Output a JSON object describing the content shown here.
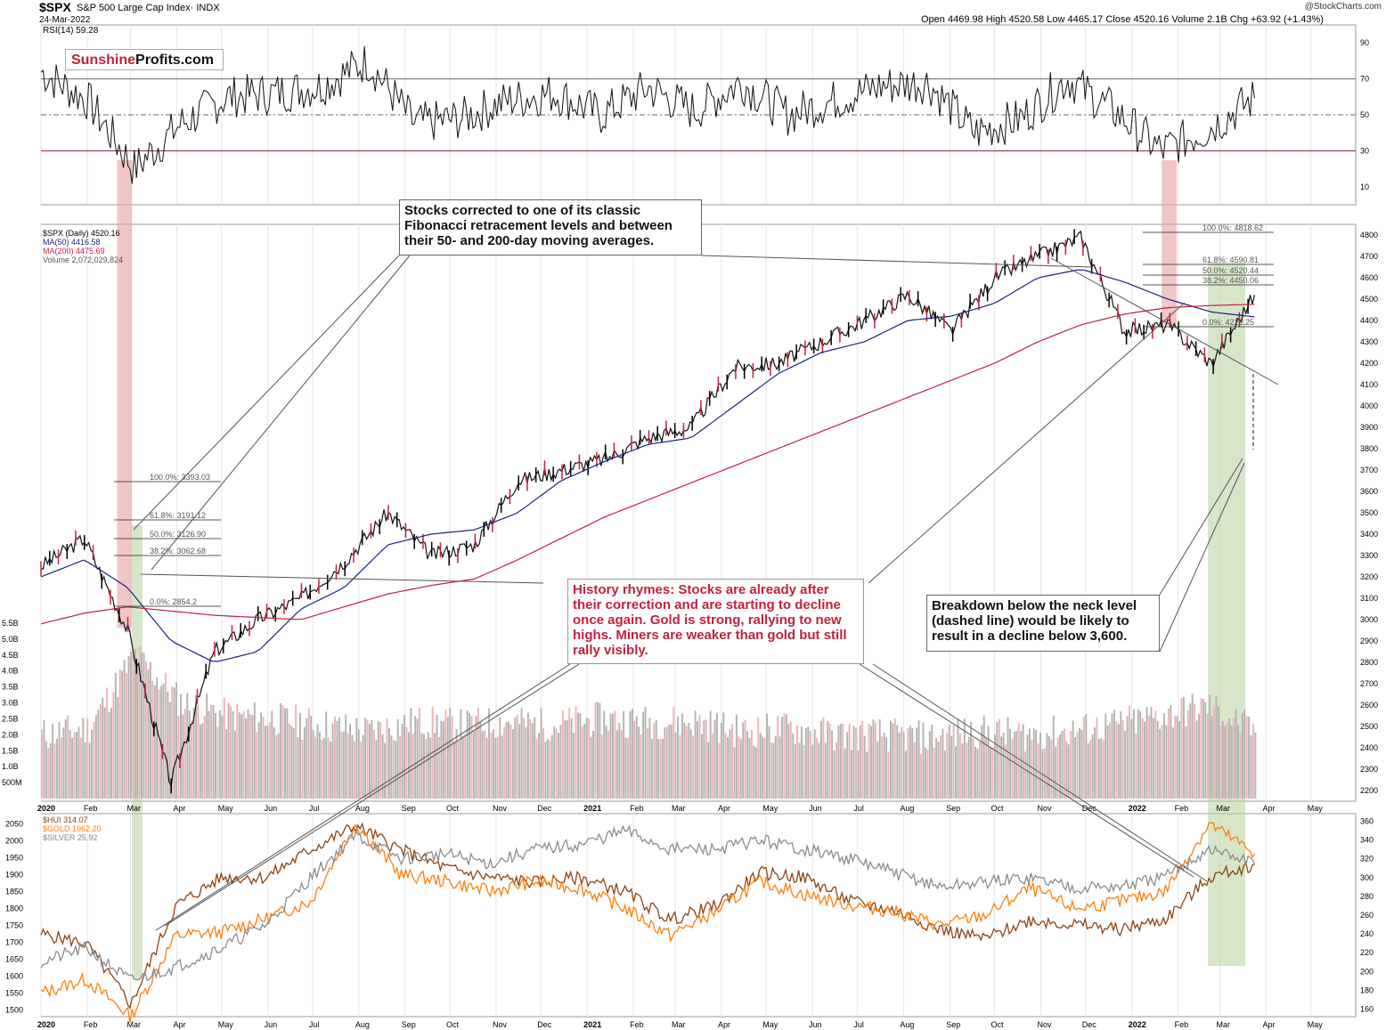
{
  "header": {
    "symbol": "$SPX",
    "description": "S&P 500 Large Cap Index· INDX",
    "date": "24-Mar-2022",
    "ohlc": "Open 4469.98  High 4520.58  Low 4465.17  Close 4520.16  Volume 2.1B  Chg +63.92 (+1.43%)",
    "credit": "@StockCharts.com"
  },
  "logo": {
    "part1": "Sunshine",
    "part2": "Profits.com"
  },
  "rsi_legend": "RSI(14) 59.28",
  "price_legend": {
    "spx": "$SPX (Daily) 4520.16",
    "ma50": "MA(50) 4416.58",
    "ma200": "MA(200) 4475.69",
    "volume": "Volume 2,072,029,824"
  },
  "bottom_legend": {
    "hui": "$HUI 314.07",
    "gold": "$GOLD 1962.20",
    "silver": "$SILVER 25.92"
  },
  "annotations": {
    "note1": "Stocks corrected to one of its classic Fibonacci retracement levels and between their 50- and 200-day moving averages.",
    "note2": "History rhymes: Stocks are already after their correction and are starting to decline once again. Gold is strong, rallying to new highs. Miners are weaker than gold but still rally visibly.",
    "note3": "Breakdown below the neck level (dashed line) would be likely to result in a decline below 3,600."
  },
  "colors": {
    "price_up": "#000000",
    "price_down": "#c0223b",
    "ma50": "#1a237e",
    "ma200": "#c0223b",
    "vol_up": "#b4b4b4",
    "vol_down": "#f0b4b4",
    "hui": "#8b4513",
    "gold": "#ff7f0e",
    "silver": "#8c8c8c",
    "highlight_red": "#e8a0a0",
    "highlight_green": "#b7cf9c",
    "rsi_fill_ob": "#5e7f52"
  },
  "chart_data": [
    {
      "type": "line",
      "panel": "rsi",
      "title": "RSI(14) 59.28",
      "yticks": [
        10,
        30,
        50,
        70,
        90
      ],
      "ylim": [
        0,
        100
      ],
      "reference_lines": [
        70,
        50,
        30
      ],
      "x": [
        "2020-01",
        "2020-02",
        "2020-03",
        "2020-04",
        "2020-05",
        "2020-06",
        "2020-07",
        "2020-08",
        "2020-09",
        "2020-10",
        "2020-11",
        "2020-12",
        "2021-01",
        "2021-02",
        "2021-03",
        "2021-04",
        "2021-05",
        "2021-06",
        "2021-07",
        "2021-08",
        "2021-09",
        "2021-10",
        "2021-11",
        "2021-12",
        "2022-01",
        "2022-02",
        "2022-03-24"
      ],
      "values": [
        74,
        58,
        20,
        45,
        60,
        62,
        66,
        80,
        45,
        48,
        58,
        62,
        50,
        65,
        52,
        68,
        50,
        58,
        66,
        68,
        40,
        48,
        70,
        52,
        30,
        42,
        59.28
      ]
    },
    {
      "type": "candlestick",
      "panel": "price",
      "title": "$SPX (Daily) 4520.16",
      "yticks": [
        2200,
        2300,
        2400,
        2500,
        2600,
        2700,
        2800,
        2900,
        3000,
        3100,
        3200,
        3300,
        3400,
        3500,
        3600,
        3700,
        3800,
        3900,
        4000,
        4100,
        4200,
        4300,
        4400,
        4500,
        4600,
        4700,
        4800
      ],
      "ylim": [
        2150,
        4850
      ],
      "xticks": [
        "2020",
        "Feb",
        "Mar",
        "Apr",
        "May",
        "Jun",
        "Jul",
        "Aug",
        "Sep",
        "Oct",
        "Nov",
        "Dec",
        "2021",
        "Feb",
        "Mar",
        "Apr",
        "May",
        "Jun",
        "Jul",
        "Aug",
        "Sep",
        "Oct",
        "Nov",
        "Dec",
        "2022",
        "Feb",
        "Mar",
        "Apr",
        "May"
      ],
      "x": [
        "2020-01",
        "2020-02",
        "2020-03",
        "2020-03b",
        "2020-04",
        "2020-05",
        "2020-06",
        "2020-07",
        "2020-08",
        "2020-09",
        "2020-10",
        "2020-11",
        "2020-12",
        "2021-01",
        "2021-02",
        "2021-03",
        "2021-04",
        "2021-05",
        "2021-06",
        "2021-07",
        "2021-08",
        "2021-09",
        "2021-10",
        "2021-11",
        "2021-12",
        "2022-01",
        "2022-02",
        "2022-03",
        "2022-03-24"
      ],
      "values": [
        3250,
        3380,
        2950,
        2237,
        2850,
        3000,
        3100,
        3270,
        3500,
        3300,
        3350,
        3650,
        3700,
        3750,
        3850,
        3900,
        4180,
        4200,
        4300,
        4400,
        4520,
        4350,
        4600,
        4700,
        4790,
        4350,
        4380,
        4200,
        4520.16
      ],
      "series": [
        {
          "name": "MA(50) 4416.58",
          "values": [
            3200,
            3280,
            3150,
            2900,
            2800,
            2850,
            3050,
            3150,
            3350,
            3400,
            3420,
            3500,
            3650,
            3740,
            3820,
            3850,
            4000,
            4150,
            4250,
            4300,
            4400,
            4420,
            4480,
            4600,
            4640,
            4580,
            4500,
            4440,
            4416.58
          ]
        },
        {
          "name": "MA(200) 4475.69",
          "values": [
            2980,
            3030,
            3060,
            3040,
            3020,
            3010,
            3000,
            3060,
            3120,
            3160,
            3190,
            3280,
            3380,
            3480,
            3560,
            3640,
            3720,
            3800,
            3880,
            3960,
            4040,
            4120,
            4200,
            4300,
            4380,
            4430,
            4460,
            4470,
            4475.69
          ]
        }
      ],
      "fibonacci_2020": [
        "100.0%: 3393.03",
        "61.8%: 3191.12",
        "50.0%: 3126.90",
        "38.2%: 3062.68",
        "0.0%: 2854.2"
      ],
      "fibonacci_2022": [
        "100.0%: 4818.62",
        "61.8%: 4590.81",
        "50.0%: 4520.44",
        "38.2%: 4450.06",
        "0.0%: 4222.25"
      ]
    },
    {
      "type": "bar",
      "panel": "volume",
      "title": "Volume 2,072,029,824",
      "yticks": [
        "500M",
        "1.0B",
        "1.5B",
        "2.0B",
        "2.5B",
        "3.0B",
        "3.5B",
        "4.0B",
        "4.5B",
        "5.0B",
        "5.5B"
      ],
      "ylim": [
        0,
        5.5
      ],
      "categories": [
        "2020-01",
        "2020-02",
        "2020-03",
        "2020-04",
        "2020-05",
        "2020-06",
        "2020-07",
        "2020-08",
        "2020-09",
        "2020-10",
        "2020-11",
        "2020-12",
        "2021-01",
        "2021-02",
        "2021-03",
        "2021-04",
        "2021-05",
        "2021-06",
        "2021-07",
        "2021-08",
        "2021-09",
        "2021-10",
        "2021-11",
        "2021-12",
        "2022-01",
        "2022-02",
        "2022-03"
      ],
      "values": [
        2.0,
        2.2,
        4.5,
        3.0,
        2.6,
        2.5,
        2.3,
        2.1,
        2.4,
        2.3,
        2.4,
        2.3,
        2.5,
        2.4,
        2.4,
        2.1,
        2.2,
        2.0,
        2.0,
        1.9,
        2.1,
        2.0,
        2.1,
        2.3,
        2.6,
        2.9,
        2.07
      ]
    },
    {
      "type": "line",
      "panel": "metals",
      "yticks_left": [
        1500,
        1550,
        1600,
        1650,
        1700,
        1750,
        1800,
        1850,
        1900,
        1950,
        2000,
        2050
      ],
      "ylim_left": [
        1480,
        2080
      ],
      "yticks_right": [
        160,
        180,
        200,
        220,
        240,
        260,
        280,
        300,
        320,
        340,
        360
      ],
      "ylim_right": [
        152,
        368
      ],
      "xticks": [
        "2020",
        "Feb",
        "Mar",
        "Apr",
        "May",
        "Jun",
        "Jul",
        "Aug",
        "Sep",
        "Oct",
        "Nov",
        "Dec",
        "2021",
        "Feb",
        "Mar",
        "Apr",
        "May",
        "Jun",
        "Jul",
        "Aug",
        "Sep",
        "Oct",
        "Nov",
        "Dec",
        "2022",
        "Feb",
        "Mar",
        "Apr",
        "May"
      ],
      "x": [
        "2020-01",
        "2020-02",
        "2020-03",
        "2020-04",
        "2020-05",
        "2020-06",
        "2020-07",
        "2020-08",
        "2020-09",
        "2020-10",
        "2020-11",
        "2020-12",
        "2021-01",
        "2021-02",
        "2021-03",
        "2021-04",
        "2021-05",
        "2021-06",
        "2021-07",
        "2021-08",
        "2021-09",
        "2021-10",
        "2021-11",
        "2021-12",
        "2022-01",
        "2022-02",
        "2022-03",
        "2022-03-24"
      ],
      "series": [
        {
          "name": "$HUI 314.07",
          "axis": "right",
          "values": [
            240,
            230,
            165,
            270,
            300,
            300,
            330,
            355,
            330,
            310,
            300,
            295,
            300,
            285,
            255,
            270,
            305,
            300,
            275,
            265,
            245,
            235,
            255,
            250,
            245,
            255,
            300,
            314.07
          ]
        },
        {
          "name": "$GOLD 1962.20",
          "axis": "left",
          "values": [
            1550,
            1590,
            1480,
            1720,
            1730,
            1770,
            1820,
            2050,
            1900,
            1880,
            1850,
            1880,
            1860,
            1800,
            1720,
            1790,
            1880,
            1840,
            1810,
            1790,
            1750,
            1780,
            1860,
            1800,
            1820,
            1850,
            2050,
            1962.2
          ]
        },
        {
          "name": "$SILVER 25.92",
          "axis": "right",
          "values": [
            210,
            225,
            190,
            205,
            225,
            250,
            300,
            345,
            320,
            325,
            315,
            330,
            335,
            350,
            330,
            330,
            340,
            330,
            320,
            305,
            290,
            295,
            300,
            290,
            290,
            300,
            330,
            315
          ]
        }
      ]
    }
  ]
}
